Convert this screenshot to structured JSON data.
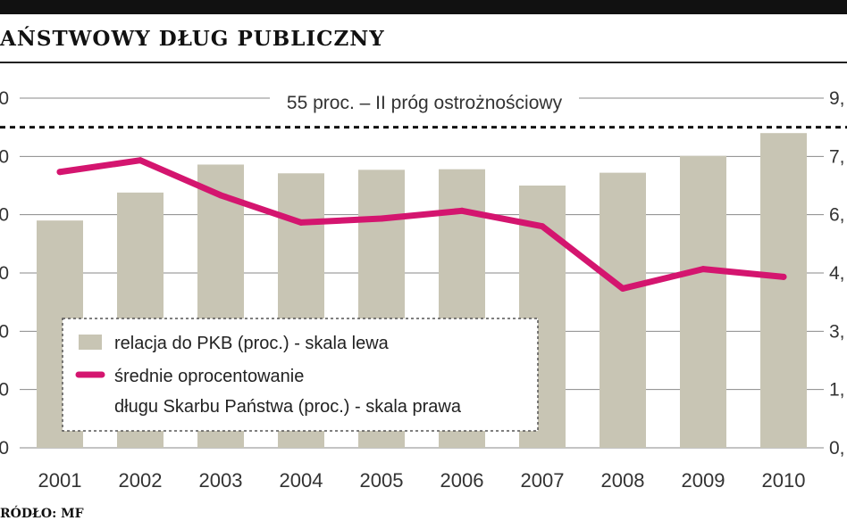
{
  "title": "AŃSTWOWY DŁUG PUBLICZNY",
  "source": "RÓDŁO: MF",
  "colors": {
    "bar": "#c8c5b4",
    "line": "#d4156f",
    "threshold": "#111111"
  },
  "chart_data": {
    "type": "bar",
    "title": "AŃSTWOWY DŁUG PUBLICZNY",
    "categories": [
      "2001",
      "2002",
      "2003",
      "2004",
      "2005",
      "2006",
      "2007",
      "2008",
      "2009",
      "2010"
    ],
    "series": [
      {
        "name": "relacja do PKB (proc.) - skala lewa",
        "type": "bar",
        "axis": "left",
        "values": [
          39.0,
          43.8,
          48.6,
          47.1,
          47.7,
          47.8,
          45.0,
          47.2,
          50.1,
          54.0
        ]
      },
      {
        "name": "średnie oprocentowanie długu Skarbu Państwa (proc.) - skala prawa",
        "type": "line",
        "axis": "right",
        "values": [
          7.1,
          7.4,
          6.5,
          5.8,
          5.9,
          6.1,
          5.7,
          4.1,
          4.6,
          4.4
        ]
      }
    ],
    "left_axis": {
      "ylim": [
        0,
        60
      ],
      "tick_labels": [
        "0",
        "0",
        "0",
        "0",
        "0",
        "0",
        "0"
      ]
    },
    "right_axis": {
      "ylim": [
        0,
        9
      ],
      "tick_labels": [
        "0,",
        "1,",
        "3,",
        "4,",
        "6,",
        "7,",
        "9,"
      ]
    },
    "threshold": {
      "value": 55,
      "label": "55 proc. – II próg ostrożnościowy"
    },
    "legend": {
      "bar_label": "relacja do PKB (proc.) - skala lewa",
      "line_label_1": "średnie oprocentowanie",
      "line_label_2": "długu Skarbu Państwa (proc.) - skala prawa",
      "placement": "bottom-left"
    },
    "grid": true
  }
}
